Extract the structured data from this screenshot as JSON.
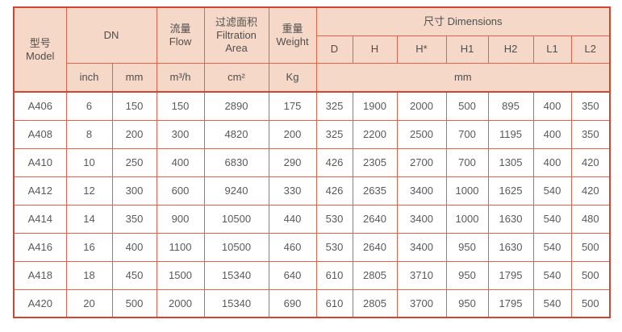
{
  "colors": {
    "header_bg": "#f5d8c7",
    "border_outer": "#cf4733",
    "border_inner": "#e0634a",
    "header_text": "#4f4f4f",
    "cell_text": "#595959"
  },
  "table": {
    "header": {
      "model_zh": "型号",
      "model_en": "Model",
      "dn": "DN",
      "flow_zh": "流量",
      "flow_en": "Flow",
      "area_zh": "过滤面积",
      "area_en": "Filtration Area",
      "weight_zh": "重量",
      "weight_en": "Weight",
      "dimensions": "尺寸 Dimensions",
      "dim_cols": [
        "D",
        "H",
        "H*",
        "H1",
        "H2",
        "L1",
        "L2"
      ],
      "unit_inch": "inch",
      "unit_mm": "mm",
      "unit_flow": "m³/h",
      "unit_area": "cm²",
      "unit_weight": "Kg",
      "unit_dims": "mm"
    },
    "rows": [
      {
        "model": "A406",
        "dn_inch": "6",
        "dn_mm": "150",
        "flow": "150",
        "area": "2890",
        "weight": "175",
        "dims": [
          "325",
          "1900",
          "2000",
          "500",
          "895",
          "400",
          "350"
        ]
      },
      {
        "model": "A408",
        "dn_inch": "8",
        "dn_mm": "200",
        "flow": "300",
        "area": "4820",
        "weight": "200",
        "dims": [
          "325",
          "2200",
          "2500",
          "700",
          "1195",
          "400",
          "350"
        ]
      },
      {
        "model": "A410",
        "dn_inch": "10",
        "dn_mm": "250",
        "flow": "400",
        "area": "6830",
        "weight": "290",
        "dims": [
          "426",
          "2305",
          "2700",
          "700",
          "1305",
          "400",
          "420"
        ]
      },
      {
        "model": "A412",
        "dn_inch": "12",
        "dn_mm": "300",
        "flow": "600",
        "area": "9240",
        "weight": "330",
        "dims": [
          "426",
          "2635",
          "3400",
          "1000",
          "1625",
          "540",
          "420"
        ]
      },
      {
        "model": "A414",
        "dn_inch": "14",
        "dn_mm": "350",
        "flow": "900",
        "area": "10500",
        "weight": "440",
        "dims": [
          "530",
          "2640",
          "3400",
          "1000",
          "1630",
          "540",
          "480"
        ]
      },
      {
        "model": "A416",
        "dn_inch": "16",
        "dn_mm": "400",
        "flow": "1100",
        "area": "10500",
        "weight": "460",
        "dims": [
          "530",
          "2640",
          "3400",
          "950",
          "1630",
          "540",
          "500"
        ]
      },
      {
        "model": "A418",
        "dn_inch": "18",
        "dn_mm": "450",
        "flow": "1500",
        "area": "15340",
        "weight": "640",
        "dims": [
          "610",
          "2805",
          "3710",
          "950",
          "1795",
          "540",
          "500"
        ]
      },
      {
        "model": "A420",
        "dn_inch": "20",
        "dn_mm": "500",
        "flow": "2000",
        "area": "15340",
        "weight": "690",
        "dims": [
          "610",
          "2805",
          "3700",
          "950",
          "1795",
          "540",
          "500"
        ]
      }
    ]
  }
}
